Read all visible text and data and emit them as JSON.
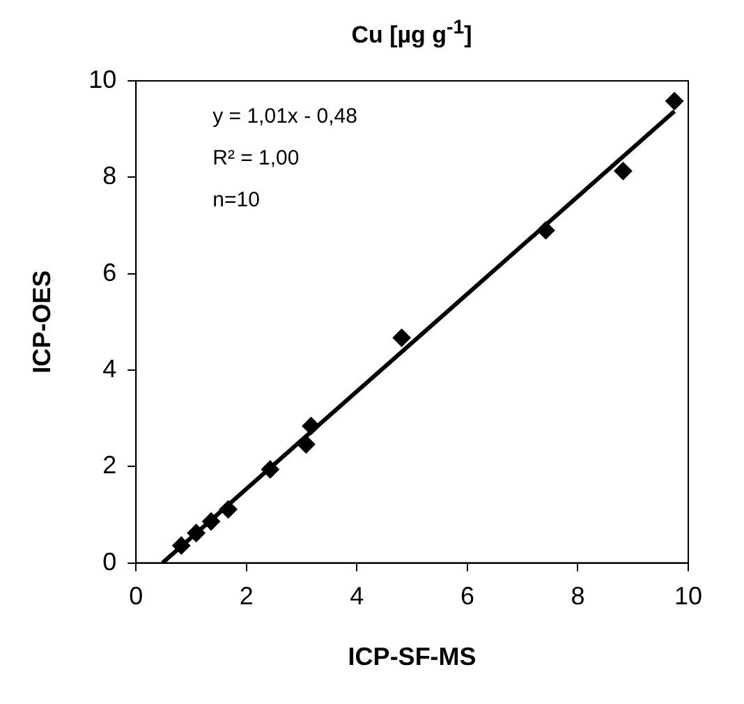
{
  "chart_data": {
    "type": "scatter",
    "title": "Cu [µg g$^{-1}$]",
    "xlabel": "ICP-SF-MS",
    "ylabel": "ICP-OES",
    "annotations": [
      "y = 1,01x - 0,48",
      "R² = 1,00",
      "n=10"
    ],
    "series": [
      {
        "marker": "diamond",
        "color": "#000000",
        "x": [
          0.82,
          1.09,
          1.36,
          1.67,
          2.43,
          3.08,
          3.17,
          4.81,
          7.42,
          8.82,
          9.75
        ],
        "values": [
          0.36,
          0.62,
          0.86,
          1.11,
          1.94,
          2.46,
          2.84,
          4.67,
          6.9,
          8.13,
          9.58
        ]
      },
      {
        "type": "line",
        "marker": "none",
        "color": "#000000",
        "x": [
          0.48,
          9.75
        ],
        "values": [
          0,
          9.37
        ]
      }
    ],
    "xlim": [
      0,
      10
    ],
    "xticks": [
      0,
      2,
      4,
      6,
      8,
      10
    ],
    "ylim": [
      0,
      10
    ],
    "yticks": [
      0,
      2,
      4,
      6,
      8,
      10
    ],
    "grid": false,
    "legend": false,
    "line_style": "solid"
  }
}
